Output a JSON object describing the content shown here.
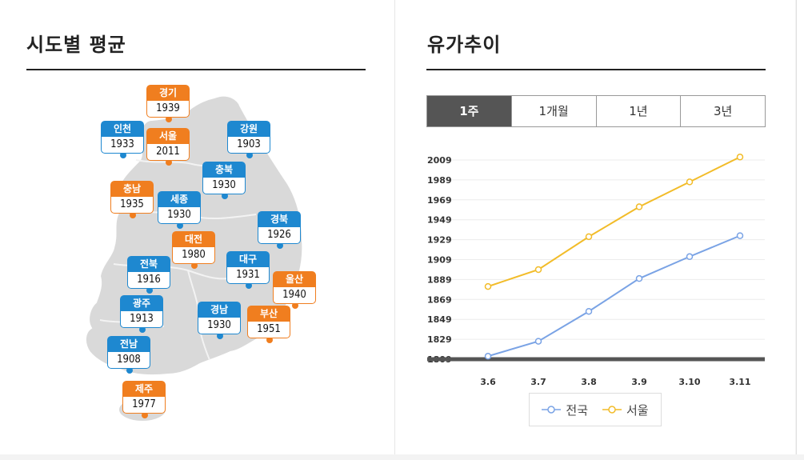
{
  "left": {
    "title": "시도별 평균"
  },
  "right": {
    "title": "유가추이"
  },
  "tabs": [
    {
      "label": "1주",
      "active": true
    },
    {
      "label": "1개월",
      "active": false
    },
    {
      "label": "1년",
      "active": false
    },
    {
      "label": "3년",
      "active": false
    }
  ],
  "regions": [
    {
      "name": "경기",
      "value": "1939",
      "color": "orange"
    },
    {
      "name": "인천",
      "value": "1933",
      "color": "blue"
    },
    {
      "name": "서울",
      "value": "2011",
      "color": "orange"
    },
    {
      "name": "강원",
      "value": "1903",
      "color": "blue"
    },
    {
      "name": "충북",
      "value": "1930",
      "color": "blue"
    },
    {
      "name": "충남",
      "value": "1935",
      "color": "orange"
    },
    {
      "name": "세종",
      "value": "1930",
      "color": "blue"
    },
    {
      "name": "경북",
      "value": "1926",
      "color": "blue"
    },
    {
      "name": "대전",
      "value": "1980",
      "color": "orange"
    },
    {
      "name": "전북",
      "value": "1916",
      "color": "blue"
    },
    {
      "name": "대구",
      "value": "1931",
      "color": "blue"
    },
    {
      "name": "울산",
      "value": "1940",
      "color": "orange"
    },
    {
      "name": "광주",
      "value": "1913",
      "color": "blue"
    },
    {
      "name": "경남",
      "value": "1930",
      "color": "blue"
    },
    {
      "name": "부산",
      "value": "1951",
      "color": "orange"
    },
    {
      "name": "전남",
      "value": "1908",
      "color": "blue"
    },
    {
      "name": "제주",
      "value": "1977",
      "color": "orange"
    }
  ],
  "colors": {
    "blue": "#1e88d0",
    "orange": "#f07e1f",
    "national": "#7aa3e5",
    "seoul": "#f2bc29"
  },
  "chart_data": {
    "type": "line",
    "x": [
      "3.6",
      "3.7",
      "3.8",
      "3.9",
      "3.10",
      "3.11"
    ],
    "yticks": [
      1809,
      1829,
      1849,
      1869,
      1889,
      1909,
      1929,
      1949,
      1969,
      1989,
      2009
    ],
    "ylim": [
      1809,
      2009
    ],
    "series": [
      {
        "name": "전국",
        "values": [
          1812,
          1827,
          1857,
          1890,
          1912,
          1933
        ]
      },
      {
        "name": "서울",
        "values": [
          1882,
          1899,
          1932,
          1962,
          1987,
          2012
        ]
      }
    ],
    "grid": true,
    "legend": "bottom"
  }
}
